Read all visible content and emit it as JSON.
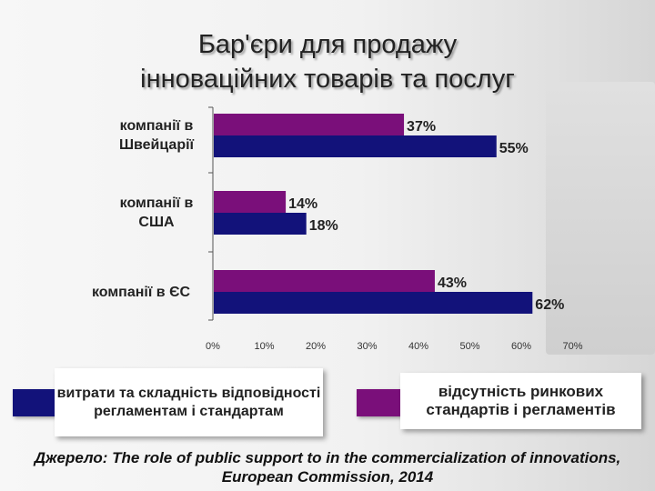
{
  "title_line1": "Бар'єри для продажу",
  "title_line2": "інноваційних товарів та послуг",
  "legend": {
    "blue_label": "витрати та складність відповідності регламентам і стандартам",
    "purple_label": "відсутність ринкових стандартів і регламентів"
  },
  "source_line1": "Джерело: The role of public support to in the commercialization of innovations,",
  "source_line2": "European Commission, 2014",
  "chart_data": {
    "type": "bar",
    "orientation": "horizontal",
    "categories": [
      {
        "line1": "компанії в",
        "line2": "Швейцарії"
      },
      {
        "line1": "компанії в",
        "line2": "США"
      },
      {
        "line1": "компанії в ЄС",
        "line2": ""
      }
    ],
    "series": [
      {
        "name": "відсутність ринкових стандартів і регламентів",
        "color": "#7a0f7a",
        "values": [
          37,
          14,
          43
        ],
        "labels": [
          "37%",
          "14%",
          "43%"
        ]
      },
      {
        "name": "витрати та складність відповідності регламентам і стандартам",
        "color": "#12127a",
        "values": [
          55,
          18,
          62
        ],
        "labels": [
          "55%",
          "18%",
          "62%"
        ]
      }
    ],
    "xlim": [
      0,
      70
    ],
    "xticks": [
      "0%",
      "10%",
      "20%",
      "30%",
      "40%",
      "50%",
      "60%",
      "70%"
    ],
    "grid": false,
    "legend_position": "bottom"
  }
}
